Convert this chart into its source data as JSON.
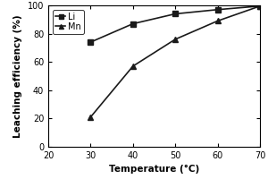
{
  "x": [
    20,
    30,
    40,
    50,
    60,
    70
  ],
  "Li_y": [
    null,
    74,
    87,
    94,
    97,
    99.5
  ],
  "Mn_y": [
    null,
    21,
    57,
    76,
    89,
    99.5
  ],
  "Li_label": "Li",
  "Mn_label": "Mn",
  "xlabel": "Temperature (°C)",
  "ylabel": "Leaching efficiency (%)",
  "xlim": [
    20,
    70
  ],
  "ylim": [
    0,
    100
  ],
  "xticks": [
    20,
    30,
    40,
    50,
    60,
    70
  ],
  "yticks": [
    0,
    20,
    40,
    60,
    80,
    100
  ],
  "line_color": "#1a1a1a",
  "marker_Li": "s",
  "marker_Mn": "^",
  "markersize": 4,
  "linewidth": 1.2,
  "label_fontsize": 7.5,
  "tick_fontsize": 7,
  "legend_fontsize": 7
}
